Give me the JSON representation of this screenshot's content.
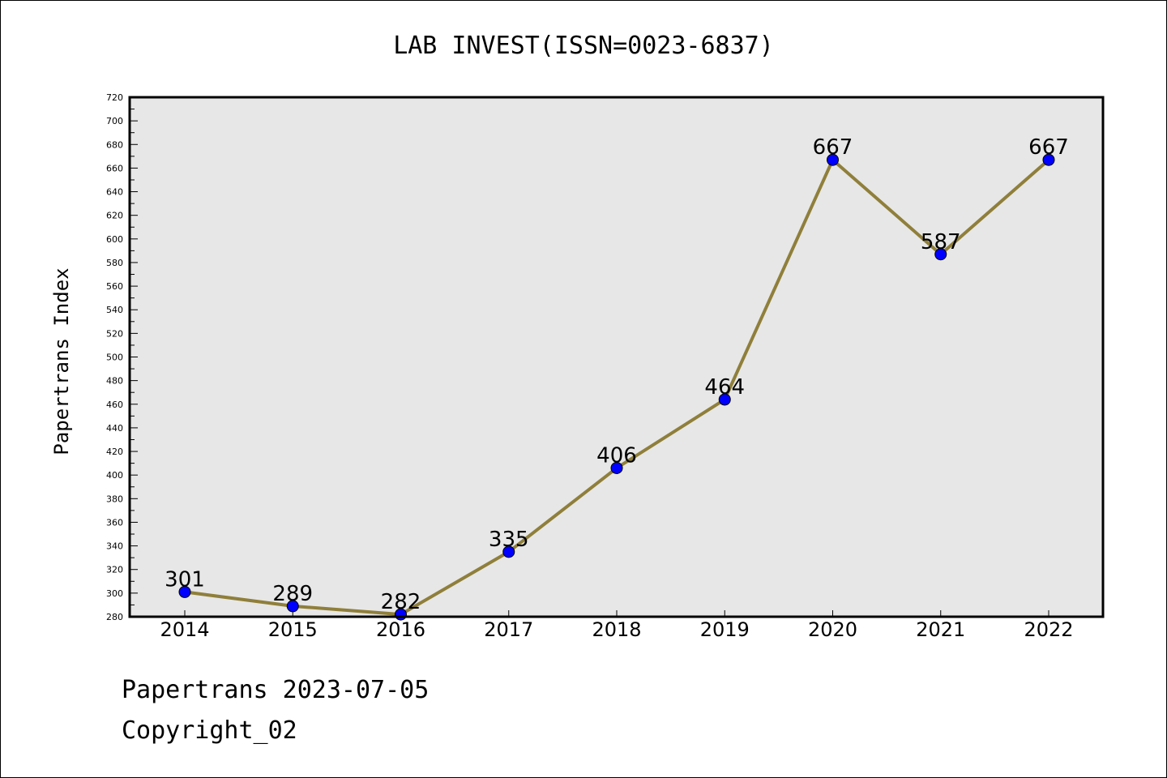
{
  "chart_data": {
    "type": "line",
    "title": "LAB INVEST(ISSN=0023-6837)",
    "xlabel": "",
    "ylabel": "Papertrans Index",
    "categories": [
      "2014",
      "2015",
      "2016",
      "2017",
      "2018",
      "2019",
      "2020",
      "2021",
      "2022"
    ],
    "series": [
      {
        "values": [
          301,
          289,
          282,
          335,
          406,
          464,
          667,
          587,
          667
        ]
      }
    ],
    "ylim": [
      280,
      720
    ],
    "ytick_step": 20,
    "yminor_step": 10,
    "grid": false,
    "legend": "none",
    "data_labels": true,
    "colors": {
      "plot_background": "#e7e7e7",
      "line": "#8f7f3a",
      "marker": "#0000ff",
      "axis": "#000000"
    }
  },
  "footer": {
    "date_line": "Papertrans 2023-07-05",
    "copyright_line": "Copyright_02"
  }
}
